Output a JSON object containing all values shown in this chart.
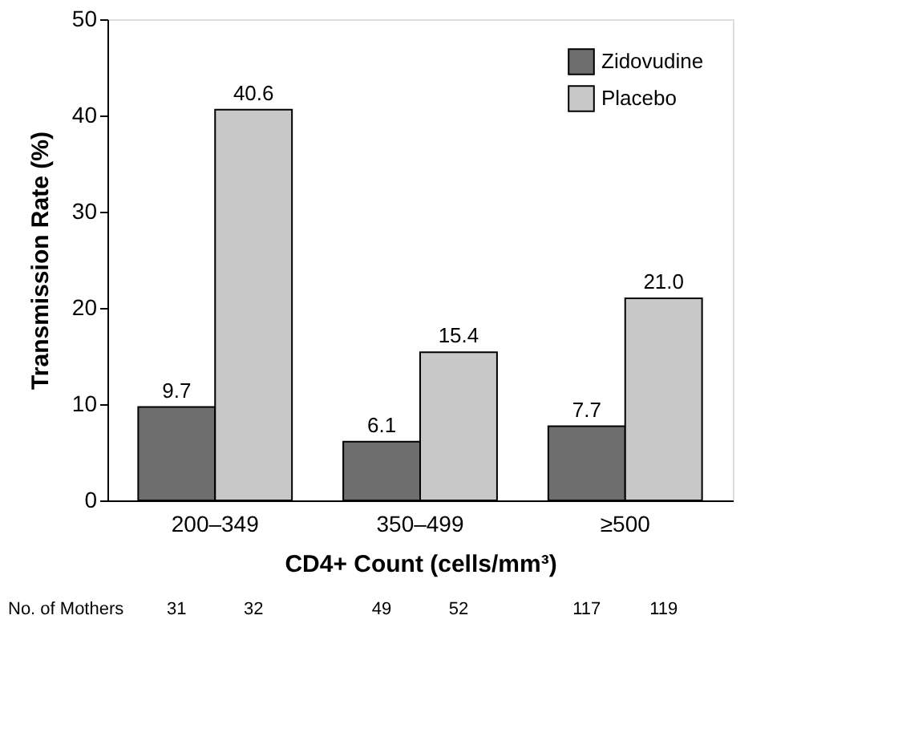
{
  "chart_data": {
    "type": "bar",
    "xlabel": "CD4+ Count (cells/mm³)",
    "ylabel": "Transmission Rate (%)",
    "categories": [
      "200–349",
      "350–499",
      "≥500"
    ],
    "series": [
      {
        "name": "Zidovudine",
        "color": "#6e6e6e",
        "values": [
          9.7,
          6.1,
          7.7
        ],
        "value_labels": [
          "9.7",
          "6.1",
          "7.7"
        ]
      },
      {
        "name": "Placebo",
        "color": "#c8c8c8",
        "values": [
          40.6,
          15.4,
          21.0
        ],
        "value_labels": [
          "40.6",
          "15.4",
          "21.0"
        ]
      }
    ],
    "ylim": [
      0,
      50
    ],
    "yticks": [
      0,
      10,
      20,
      30,
      40,
      50
    ],
    "grid": false,
    "legend": "top right",
    "annotations": [
      "No. of Mothers",
      "31",
      "32",
      "49",
      "52",
      "117",
      "119"
    ]
  }
}
